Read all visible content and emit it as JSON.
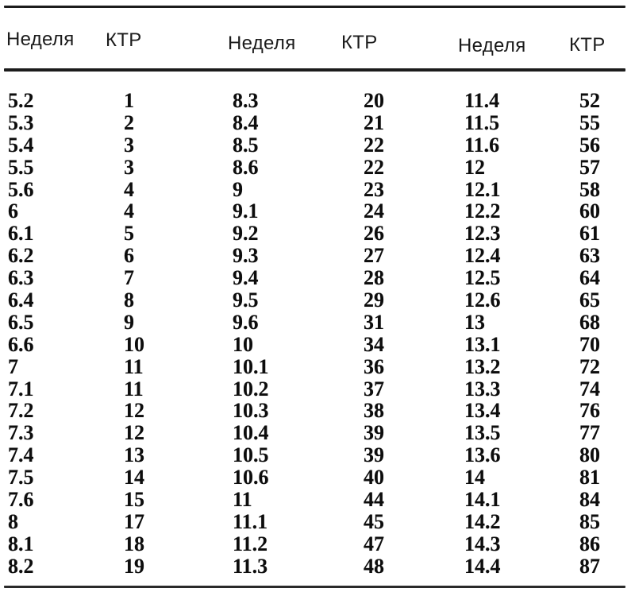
{
  "table": {
    "headers": [
      "Неделя",
      "КТР",
      "Неделя",
      "КТР",
      "Неделя",
      "КТР"
    ],
    "rows": [
      [
        "5.2",
        "1",
        "8.3",
        "20",
        "11.4",
        "52"
      ],
      [
        "5.3",
        "2",
        "8.4",
        "21",
        "11.5",
        "55"
      ],
      [
        "5.4",
        "3",
        "8.5",
        "22",
        "11.6",
        "56"
      ],
      [
        "5.5",
        "3",
        "8.6",
        "22",
        "12",
        "57"
      ],
      [
        "5.6",
        "4",
        "9",
        "23",
        "12.1",
        "58"
      ],
      [
        "6",
        "4",
        "9.1",
        "24",
        "12.2",
        "60"
      ],
      [
        "6.1",
        "5",
        "9.2",
        "26",
        "12.3",
        "61"
      ],
      [
        "6.2",
        "6",
        "9.3",
        "27",
        "12.4",
        "63"
      ],
      [
        "6.3",
        "7",
        "9.4",
        "28",
        "12.5",
        "64"
      ],
      [
        "6.4",
        "8",
        "9.5",
        "29",
        "12.6",
        "65"
      ],
      [
        "6.5",
        "9",
        "9.6",
        "31",
        "13",
        "68"
      ],
      [
        "6.6",
        "10",
        "10",
        "34",
        "13.1",
        "70"
      ],
      [
        "7",
        "11",
        "10.1",
        "36",
        "13.2",
        "72"
      ],
      [
        "7.1",
        "11",
        "10.2",
        "37",
        "13.3",
        "74"
      ],
      [
        "7.2",
        "12",
        "10.3",
        "38",
        "13.4",
        "76"
      ],
      [
        "7.3",
        "12",
        "10.4",
        "39",
        "13.5",
        "77"
      ],
      [
        "7.4",
        "13",
        "10.5",
        "39",
        "13.6",
        "80"
      ],
      [
        "7.5",
        "14",
        "10.6",
        "40",
        "14",
        "81"
      ],
      [
        "7.6",
        "15",
        "11",
        "44",
        "14.1",
        "84"
      ],
      [
        "8",
        "17",
        "11.1",
        "45",
        "14.2",
        "85"
      ],
      [
        "8.1",
        "18",
        "11.2",
        "47",
        "14.3",
        "86"
      ],
      [
        "8.2",
        "19",
        "11.3",
        "48",
        "14.4",
        "87"
      ]
    ]
  },
  "colors": {
    "rule": "#1c1c1c",
    "text": "#0d0d0d",
    "header_text": "#1b1b1b",
    "background": "#ffffff"
  }
}
